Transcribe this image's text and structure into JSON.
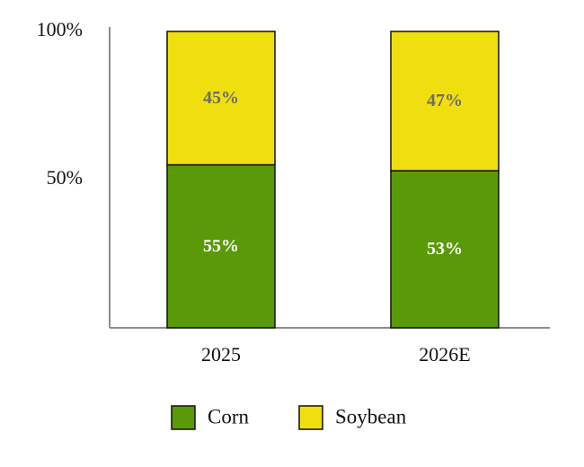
{
  "chart_data": {
    "type": "bar",
    "stacked": true,
    "normalized": true,
    "categories": [
      "2025",
      "2026E"
    ],
    "series": [
      {
        "name": "Corn",
        "values": [
          55,
          53
        ],
        "labels": [
          "55%",
          "53%"
        ],
        "color": "#5a9a08",
        "label_color": "#ffffff"
      },
      {
        "name": "Soybean",
        "values": [
          45,
          47
        ],
        "labels": [
          "45%",
          "47%"
        ],
        "color": "#f0df0f",
        "label_color": "#6b6b6b"
      }
    ],
    "y_ticks": [
      {
        "value": 50,
        "label": "50%"
      },
      {
        "value": 100,
        "label": "100%"
      }
    ],
    "ylim": [
      0,
      100
    ],
    "title": "",
    "xlabel": "",
    "ylabel": "",
    "legend_position": "bottom-center",
    "grid": false,
    "colors": {
      "axis": "#8c8c8c",
      "bar_outline": "#111111"
    }
  }
}
